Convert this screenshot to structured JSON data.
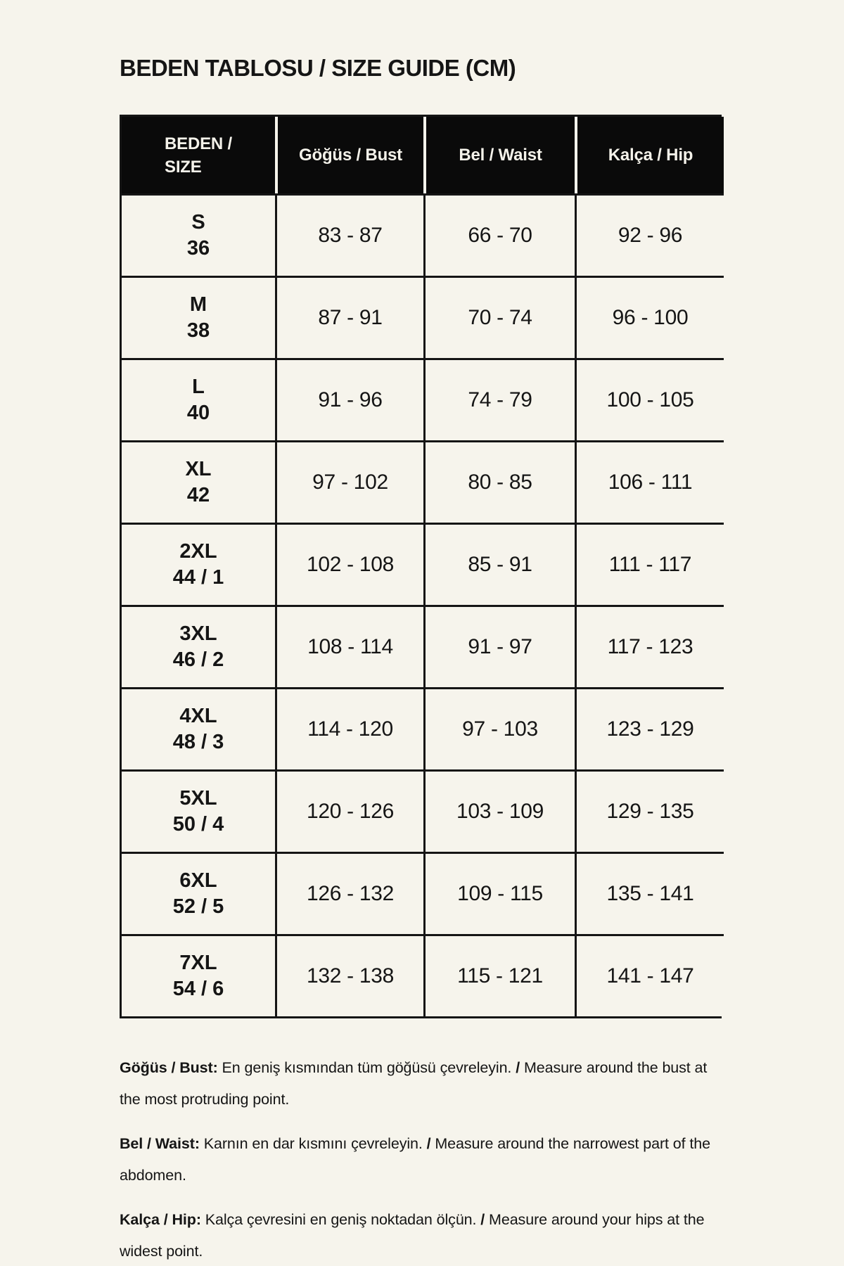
{
  "page": {
    "title": "BEDEN TABLOSU / SIZE GUIDE (CM)",
    "colors": {
      "background": "#F6F4EC",
      "text": "#151515",
      "table_header_background": "#0A0A0A",
      "table_header_text": "#F4F2EA",
      "table_border": "#151515"
    }
  },
  "table": {
    "header": {
      "size_line1": "BEDEN /",
      "size_line2": "SIZE",
      "bust": "Göğüs / Bust",
      "waist": "Bel / Waist",
      "hip": "Kalça / Hip"
    },
    "rows": [
      {
        "size_label": "S",
        "size_number": "36",
        "bust": "83 - 87",
        "waist": "66 - 70",
        "hip": "92 - 96"
      },
      {
        "size_label": "M",
        "size_number": "38",
        "bust": "87 - 91",
        "waist": "70 - 74",
        "hip": "96 - 100"
      },
      {
        "size_label": "L",
        "size_number": "40",
        "bust": "91 - 96",
        "waist": "74 - 79",
        "hip": "100 - 105"
      },
      {
        "size_label": "XL",
        "size_number": "42",
        "bust": "97 - 102",
        "waist": "80 - 85",
        "hip": "106 - 111"
      },
      {
        "size_label": "2XL",
        "size_number": "44 / 1",
        "bust": "102 - 108",
        "waist": "85 - 91",
        "hip": "111 - 117"
      },
      {
        "size_label": "3XL",
        "size_number": "46 / 2",
        "bust": "108 - 114",
        "waist": "91 - 97",
        "hip": "117 - 123"
      },
      {
        "size_label": "4XL",
        "size_number": "48 / 3",
        "bust": "114 - 120",
        "waist": "97 - 103",
        "hip": "123 - 129"
      },
      {
        "size_label": "5XL",
        "size_number": "50 / 4",
        "bust": "120 - 126",
        "waist": "103 - 109",
        "hip": "129 - 135"
      },
      {
        "size_label": "6XL",
        "size_number": "52 / 5",
        "bust": "126 - 132",
        "waist": "109 - 115",
        "hip": "135 - 141"
      },
      {
        "size_label": "7XL",
        "size_number": "54 / 6",
        "bust": "132 - 138",
        "waist": "115 - 121",
        "hip": "141 - 147"
      }
    ]
  },
  "notes": [
    {
      "label": "Göğüs / Bust:",
      "tr": "En geniş kısmından tüm göğüsü çevreleyin.",
      "separator": "/",
      "en": "Measure around the bust at the most protruding point."
    },
    {
      "label": "Bel / Waist:",
      "tr": "Karnın en dar kısmını çevreleyin.",
      "separator": "/",
      "en": "Measure around the narrowest part of the abdomen."
    },
    {
      "label": "Kalça / Hip:",
      "tr": "Kalça çevresini en geniş noktadan ölçün.",
      "separator": "/",
      "en": "Measure around your hips at the widest point."
    }
  ]
}
